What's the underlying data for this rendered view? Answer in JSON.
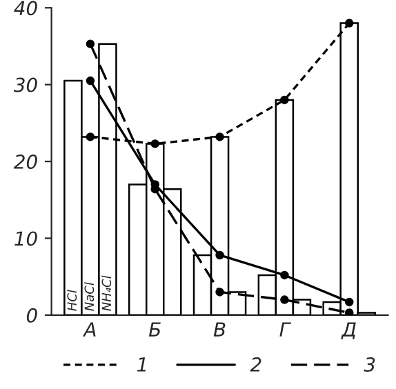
{
  "chart_data": {
    "type": "bar",
    "categories": [
      "А",
      "Б",
      "В",
      "Г",
      "Д"
    ],
    "series": [
      {
        "name": "HCl",
        "color": "#ffffff",
        "values": [
          30.5,
          17,
          7.8,
          5.2,
          1.7
        ]
      },
      {
        "name": "NaCl",
        "color": "#ffffff",
        "values": [
          23.2,
          22.3,
          23.2,
          28,
          38
        ]
      },
      {
        "name": "NH₄Cl",
        "color": "#ffffff",
        "values": [
          35.3,
          16.4,
          3,
          2,
          0.3
        ]
      },
      {
        "type": "line",
        "name": "1",
        "color": "#000000",
        "line_style": "dotted",
        "values": [
          23.2,
          22.3,
          23.2,
          28,
          38
        ]
      },
      {
        "type": "line",
        "name": "2",
        "color": "#000000",
        "line_style": "solid",
        "values": [
          30.5,
          17,
          7.8,
          5.2,
          1.7
        ]
      },
      {
        "type": "line",
        "name": "3",
        "color": "#000000",
        "line_style": "dashed",
        "values": [
          35.3,
          16.4,
          3,
          2,
          0.3
        ]
      }
    ],
    "ylim": [
      0,
      40
    ],
    "yticks": [
      0,
      10,
      20,
      30,
      40
    ],
    "grid": false,
    "legend": "bottom",
    "marker": "circle"
  }
}
